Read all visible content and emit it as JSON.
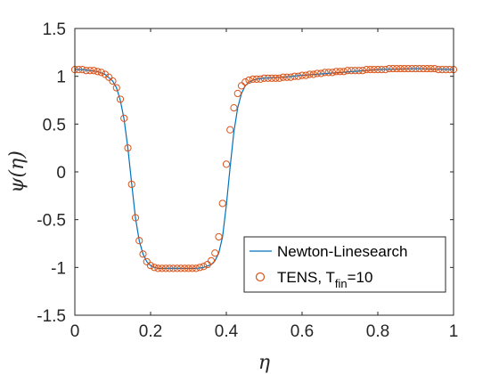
{
  "chart_data": {
    "type": "line",
    "title": "",
    "xlabel": "η",
    "ylabel": "ψ(η)",
    "xlim": [
      0,
      1
    ],
    "ylim": [
      -1.5,
      1.5
    ],
    "xticks": [
      "0",
      "0.2",
      "0.4",
      "0.6",
      "0.8",
      "1"
    ],
    "yticks": [
      "-1.5",
      "-1",
      "-0.5",
      "0",
      "0.5",
      "1",
      "1.5"
    ],
    "grid": false,
    "legend_position": "bottom-right",
    "series": [
      {
        "name": "Newton-Linesearch",
        "style": "line",
        "color": "#0072BD",
        "x": [
          0,
          0.02,
          0.04,
          0.06,
          0.08,
          0.1,
          0.11,
          0.12,
          0.13,
          0.14,
          0.15,
          0.16,
          0.17,
          0.18,
          0.19,
          0.2,
          0.21,
          0.22,
          0.24,
          0.26,
          0.28,
          0.3,
          0.32,
          0.34,
          0.36,
          0.37,
          0.38,
          0.39,
          0.4,
          0.41,
          0.42,
          0.43,
          0.44,
          0.45,
          0.46,
          0.47,
          0.48,
          0.5,
          0.55,
          0.6,
          0.7,
          0.8,
          0.9,
          1.0
        ],
        "y": [
          1.07,
          1.07,
          1.06,
          1.05,
          1.02,
          0.95,
          0.88,
          0.75,
          0.55,
          0.25,
          -0.12,
          -0.48,
          -0.72,
          -0.86,
          -0.94,
          -0.98,
          -1.0,
          -1.01,
          -1.01,
          -1.01,
          -1.01,
          -1.01,
          -1.01,
          -1.0,
          -0.97,
          -0.93,
          -0.85,
          -0.68,
          -0.35,
          0.05,
          0.42,
          0.67,
          0.82,
          0.9,
          0.94,
          0.96,
          0.97,
          0.98,
          0.99,
          1.01,
          1.04,
          1.07,
          1.08,
          1.07
        ]
      },
      {
        "name_main": "TENS, T",
        "name_sub": "fin",
        "name_tail": "=10",
        "style": "markers",
        "color": "#D95319",
        "x": [
          0,
          0.01,
          0.02,
          0.03,
          0.04,
          0.05,
          0.06,
          0.07,
          0.08,
          0.09,
          0.1,
          0.11,
          0.12,
          0.13,
          0.14,
          0.15,
          0.16,
          0.17,
          0.18,
          0.19,
          0.2,
          0.21,
          0.22,
          0.23,
          0.24,
          0.25,
          0.26,
          0.27,
          0.28,
          0.29,
          0.3,
          0.31,
          0.32,
          0.33,
          0.34,
          0.35,
          0.36,
          0.37,
          0.38,
          0.39,
          0.4,
          0.41,
          0.42,
          0.43,
          0.44,
          0.45,
          0.46,
          0.47,
          0.48,
          0.49,
          0.5,
          0.51,
          0.52,
          0.53,
          0.54,
          0.55,
          0.56,
          0.57,
          0.58,
          0.59,
          0.6,
          0.61,
          0.62,
          0.63,
          0.64,
          0.65,
          0.66,
          0.67,
          0.68,
          0.69,
          0.7,
          0.71,
          0.72,
          0.73,
          0.74,
          0.75,
          0.76,
          0.77,
          0.78,
          0.79,
          0.8,
          0.81,
          0.82,
          0.83,
          0.84,
          0.85,
          0.86,
          0.87,
          0.88,
          0.89,
          0.9,
          0.91,
          0.92,
          0.93,
          0.94,
          0.95,
          0.96,
          0.97,
          0.98,
          0.99,
          1.0
        ],
        "y": [
          1.07,
          1.07,
          1.07,
          1.06,
          1.06,
          1.06,
          1.05,
          1.04,
          1.02,
          0.99,
          0.95,
          0.88,
          0.76,
          0.56,
          0.25,
          -0.13,
          -0.48,
          -0.72,
          -0.86,
          -0.94,
          -0.98,
          -1.0,
          -1.01,
          -1.01,
          -1.01,
          -1.01,
          -1.01,
          -1.01,
          -1.01,
          -1.01,
          -1.01,
          -1.01,
          -1.01,
          -1.0,
          -0.99,
          -0.97,
          -0.93,
          -0.85,
          -0.68,
          -0.33,
          0.08,
          0.44,
          0.67,
          0.82,
          0.9,
          0.94,
          0.96,
          0.97,
          0.97,
          0.97,
          0.98,
          0.98,
          0.98,
          0.98,
          0.98,
          0.99,
          0.99,
          0.99,
          1.0,
          1.0,
          1.01,
          1.01,
          1.02,
          1.02,
          1.03,
          1.03,
          1.04,
          1.04,
          1.04,
          1.05,
          1.05,
          1.05,
          1.06,
          1.06,
          1.06,
          1.06,
          1.06,
          1.07,
          1.07,
          1.07,
          1.07,
          1.07,
          1.07,
          1.08,
          1.08,
          1.08,
          1.08,
          1.08,
          1.08,
          1.08,
          1.08,
          1.08,
          1.08,
          1.08,
          1.08,
          1.08,
          1.07,
          1.07,
          1.07,
          1.07,
          1.07
        ]
      }
    ]
  }
}
